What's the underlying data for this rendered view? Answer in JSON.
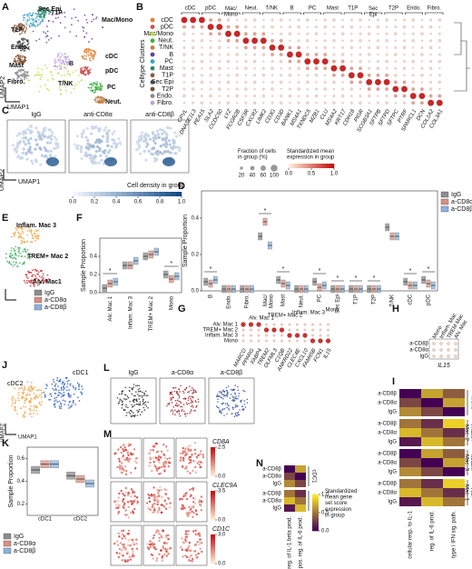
{
  "letters": {
    "A": "A",
    "B": "B",
    "C": "C",
    "D": "D",
    "E": "E",
    "F": "F",
    "G": "G",
    "H": "H",
    "I": "I",
    "J": "J",
    "K": "K",
    "L": "L",
    "M": "M",
    "N": "N"
  },
  "A": {
    "clusters": [
      "Mac/Mono",
      "Sec Epi",
      "T1P",
      "T2P",
      "Endo.",
      "Mast",
      "Fibro.",
      "B",
      "cDC",
      "pDC",
      "T/NK",
      "PC",
      "Neut."
    ],
    "x_label": "UMAP1",
    "y_label": "UMAP2"
  },
  "B": {
    "y_label": "Celltype Clusters",
    "groups": [
      "cDC",
      "pDC",
      "Mac/\nMono",
      "Neut.",
      "T/NK",
      "B",
      "PC",
      "Mast",
      "T1P",
      "Sec\nEpi",
      "T2P",
      "Endo.",
      "Fibro."
    ],
    "rows": [
      "cDC",
      "pDC",
      "Mac/Mono",
      "Neut.",
      "T/NK",
      "B",
      "PC",
      "Mast",
      "T1P",
      "Sec Epi",
      "T2P",
      "Endo.",
      "Fibro."
    ],
    "genes": [
      "CPVL",
      "DNASE1L3",
      "PEA15",
      "SLA2",
      "CCDC50",
      "LYZ",
      "FCGR2B",
      "CSF3R",
      "CXCR2",
      "LIMK2",
      "CD3G",
      "CD3D",
      "BANK1",
      "MS4A1",
      "TXNDC5",
      "MZB1",
      "CLU",
      "MS4A2",
      "KRT17",
      "CDH18",
      "PIGR",
      "SCGB3A1",
      "SFTPB",
      "SFTPD",
      "SFTPC",
      "PTRF",
      "SPARCL1",
      "DCN",
      "COL1A2",
      "COL3A1"
    ],
    "size_legend": {
      "title": "Fraction of cells\nin group (%)",
      "sizes": [
        20,
        40,
        60,
        100
      ]
    },
    "color_legend": {
      "title": "Standardized mean\nexpression in group",
      "lim": [
        0,
        1
      ],
      "ticks": [
        {
          "value": 0,
          "label": "0.0"
        },
        0.5,
        {
          "value": 1,
          "label": "1.0"
        }
      ]
    }
  },
  "C": {
    "groups": [
      "IgG",
      "anti-CD8α",
      "anti-CD8β"
    ],
    "x_label": "UMAP1",
    "y_label": "UMAP2",
    "colorbar": {
      "title": "Cell density in group",
      "lim": [
        0,
        1
      ],
      "ticks": [
        {
          "value": 0,
          "label": "0.0"
        },
        0.2,
        0.4,
        0.6,
        0.8,
        {
          "value": 1,
          "label": "1.0"
        }
      ]
    }
  },
  "E": {
    "clusters": [
      "Inflam. Mac 3",
      "TREM+ Mac 2",
      "Alv. Mac1"
    ]
  },
  "G": {
    "groups": [
      "Alv. Mac 1",
      "TREM+ Mac 2",
      "Inflam. Mac 3",
      "Mono"
    ],
    "rows": [
      "Alv. Mac 1",
      "TREM+ Mac 2",
      "Inflam. Mac 3",
      "Mono"
    ],
    "genes": [
      "MARCO",
      "PPARG",
      "FABP4",
      "TREM2",
      "OLFML3",
      "C1QB",
      "ANKRD22",
      "CLEC4E",
      "CXCL10",
      "FAM65B",
      "FCN1",
      "IL15"
    ]
  },
  "H": {
    "columns": [
      "Mono",
      "Inflam. Mac",
      "TREM Mac",
      "Alv. Mac"
    ],
    "rows": [
      "a-CD8β",
      "a-CD8α",
      "IgG"
    ],
    "gene": "IL15"
  },
  "I": {
    "blocks": [
      "Mono",
      "TREM+\nMac. 2",
      "Inflam.\nMac. 3",
      "Alv.\nMac. 1"
    ],
    "rows": [
      "a-CD8β",
      "a-CD8α",
      "IgG"
    ],
    "terms": [
      "cellular resp. to IL-1",
      "reg. of IL-6 prod.",
      "type I IFN sig. path."
    ]
  },
  "J": {
    "clusters": [
      "cDC2",
      "cDC1"
    ],
    "x_label": "UMAP1",
    "y_label": "UMAP2"
  },
  "L": {
    "groups": [
      "IgG",
      "a-CD8α",
      "a-CD8β"
    ]
  },
  "M": {
    "genes": [
      {
        "name": "CD8A",
        "lim": [
          0,
          2.5
        ],
        "ticks": [
          {
            "value": 0,
            "label": "0.0"
          },
          {
            "value": 2.5,
            "label": "2.5"
          }
        ]
      },
      {
        "name": "CLEC9A",
        "lim": [
          0,
          3.5
        ],
        "ticks": [
          {
            "value": 0,
            "label": "0.0"
          },
          {
            "value": 3.5,
            "label": "3.5"
          }
        ]
      },
      {
        "name": "CD1C",
        "lim": [
          0,
          3
        ],
        "ticks": [
          {
            "value": 0,
            "label": "0.0"
          },
          {
            "value": 3,
            "label": "3.0"
          }
        ]
      }
    ]
  },
  "N": {
    "blocks": [
      "cDC1",
      "cDC2"
    ],
    "rows": [
      "a-CD8β",
      "a-CD8α",
      "IgG"
    ],
    "terms": [
      "reg. of IL-1 beta prod.",
      "pos. reg. of IL-6 prod."
    ],
    "colorbar": {
      "title": "Standardized\nmean gene\nset score\nexpression\nin group",
      "lim": [
        0,
        1
      ],
      "ticks": [
        {
          "value": 0,
          "label": "0.0"
        },
        0.5,
        {
          "value": 1,
          "label": "1.0"
        }
      ]
    }
  },
  "charts": {
    "D": {
      "type": "box",
      "y_label": "Sample Proportion",
      "categories": [
        "B",
        "Endo.",
        "Fibro.",
        "Mac/\nMono",
        "Mast",
        "Neut.",
        "PC",
        "Sec Epi",
        "T1P",
        "T2P",
        "T/NK",
        "cDC",
        "pDC"
      ],
      "ylim": [
        0,
        0.55
      ],
      "yticks": [
        {
          "value": 0,
          "label": "0.0"
        },
        0.2,
        0.4
      ],
      "marker": "*",
      "significant": [
        "B",
        "Mac/\nMono",
        "Mast",
        "PC",
        "Sec Epi",
        "T1P",
        "T2P",
        "cDC",
        "pDC"
      ],
      "series": [
        {
          "name": "IgG",
          "color": "#8c8c8c",
          "values": [
            0.05,
            0.01,
            0.01,
            0.3,
            0.06,
            0.01,
            0.05,
            0.01,
            0.01,
            0.01,
            0.35,
            0.05,
            0.06
          ]
        },
        {
          "name": "a-CD8α",
          "color": "#d9907f",
          "values": [
            0.04,
            0.01,
            0.01,
            0.38,
            0.04,
            0.01,
            0.02,
            0.01,
            0.01,
            0.01,
            0.3,
            0.03,
            0.04
          ]
        },
        {
          "name": "a-CD8β",
          "color": "#8cb3dc",
          "values": [
            0.06,
            0.01,
            0.01,
            0.25,
            0.03,
            0.01,
            0.03,
            0.01,
            0.01,
            0.01,
            0.3,
            0.03,
            0.03
          ]
        }
      ]
    },
    "F": {
      "type": "box",
      "y_label": "Sample Proportion",
      "categories": [
        "Alv. Mac 1",
        "Inflam. Mac 3",
        "TREM+ Mac 2",
        "Mono"
      ],
      "ylim": [
        0,
        0.6
      ],
      "yticks": [
        {
          "value": 0,
          "label": "0.0"
        },
        0.2,
        0.4
      ],
      "marker": "*",
      "significant": [
        "Alv. Mac 1",
        "Mono"
      ],
      "series": [
        {
          "name": "IgG",
          "color": "#8c8c8c",
          "values": [
            0.05,
            0.3,
            0.4,
            0.2
          ]
        },
        {
          "name": "a-CD8α",
          "color": "#d9907f",
          "values": [
            0.1,
            0.3,
            0.42,
            0.15
          ]
        },
        {
          "name": "a-CD8β",
          "color": "#8cb3dc",
          "values": [
            0.12,
            0.35,
            0.45,
            0.18
          ]
        }
      ]
    },
    "K": {
      "type": "box",
      "y_label": "Sample Proportion",
      "categories": [
        "cDC1",
        "cDC2"
      ],
      "ylim": [
        0.1,
        0.7
      ],
      "yticks": [
        0.2,
        0.4,
        0.6
      ],
      "marker": "*",
      "significant": [],
      "series": [
        {
          "name": "IgG",
          "color": "#8c8c8c",
          "values": [
            0.5,
            0.45
          ]
        },
        {
          "name": "a-CD8α",
          "color": "#d9907f",
          "values": [
            0.55,
            0.42
          ]
        },
        {
          "name": "a-CD8β",
          "color": "#8cb3dc",
          "values": [
            0.55,
            0.38
          ]
        }
      ]
    }
  }
}
